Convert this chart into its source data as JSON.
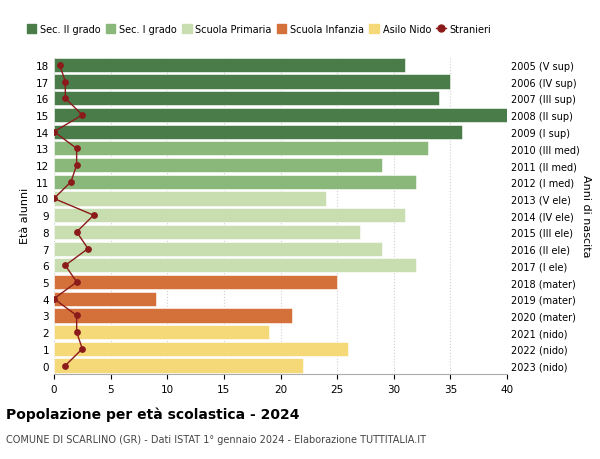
{
  "ages": [
    18,
    17,
    16,
    15,
    14,
    13,
    12,
    11,
    10,
    9,
    8,
    7,
    6,
    5,
    4,
    3,
    2,
    1,
    0
  ],
  "right_labels": [
    "2005 (V sup)",
    "2006 (IV sup)",
    "2007 (III sup)",
    "2008 (II sup)",
    "2009 (I sup)",
    "2010 (III med)",
    "2011 (II med)",
    "2012 (I med)",
    "2013 (V ele)",
    "2014 (IV ele)",
    "2015 (III ele)",
    "2016 (II ele)",
    "2017 (I ele)",
    "2018 (mater)",
    "2019 (mater)",
    "2020 (mater)",
    "2021 (nido)",
    "2022 (nido)",
    "2023 (nido)"
  ],
  "bar_values": [
    31,
    35,
    34,
    40,
    36,
    33,
    29,
    32,
    24,
    31,
    27,
    29,
    32,
    25,
    9,
    21,
    19,
    26,
    22
  ],
  "bar_colors": [
    "#4a7c4a",
    "#4a7c4a",
    "#4a7c4a",
    "#4a7c4a",
    "#4a7c4a",
    "#8ab87a",
    "#8ab87a",
    "#8ab87a",
    "#c8ddb0",
    "#c8ddb0",
    "#c8ddb0",
    "#c8ddb0",
    "#c8ddb0",
    "#d4703a",
    "#d4703a",
    "#d4703a",
    "#f5d878",
    "#f5d878",
    "#f5d878"
  ],
  "stranieri_values": [
    0.5,
    1,
    1,
    2.5,
    0,
    2,
    2,
    1.5,
    0,
    3.5,
    2,
    3,
    1,
    2,
    0,
    2,
    2,
    2.5,
    1
  ],
  "legend_labels": [
    "Sec. II grado",
    "Sec. I grado",
    "Scuola Primaria",
    "Scuola Infanzia",
    "Asilo Nido",
    "Stranieri"
  ],
  "legend_colors": [
    "#4a7c4a",
    "#8ab87a",
    "#c8ddb0",
    "#d4703a",
    "#f5d878",
    "#8b1a1a"
  ],
  "ylabel": "Età alunni",
  "right_ylabel": "Anni di nascita",
  "title": "Popolazione per età scolastica - 2024",
  "subtitle": "COMUNE DI SCARLINO (GR) - Dati ISTAT 1° gennaio 2024 - Elaborazione TUTTITALIA.IT",
  "xlim": [
    0,
    40
  ],
  "background_color": "#ffffff",
  "grid_color": "#d0d0d0"
}
